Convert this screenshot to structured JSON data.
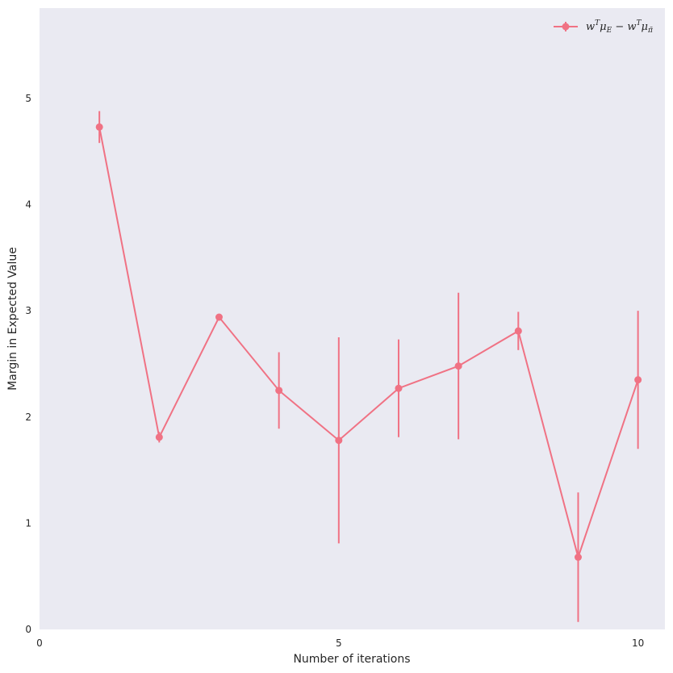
{
  "chart_data": {
    "type": "line",
    "xlabel": "Number of iterations",
    "ylabel": "Margin in Expected Value",
    "xlim": [
      0,
      10.45
    ],
    "ylim": [
      0,
      5.85
    ],
    "xticks": [
      0,
      5,
      10
    ],
    "yticks": [
      0,
      1,
      2,
      3,
      4,
      5
    ],
    "grid": false,
    "legend": "top-right",
    "series": [
      {
        "name": "w^T μ_E − w^T μ_π̃",
        "color": "#f07284",
        "x": [
          1,
          2,
          3,
          4,
          5,
          6,
          7,
          8,
          9,
          10
        ],
        "y": [
          4.73,
          1.81,
          2.94,
          2.25,
          1.78,
          2.27,
          2.48,
          2.81,
          0.68,
          2.35
        ],
        "error": [
          0.15,
          0.05,
          0.02,
          0.36,
          0.97,
          0.46,
          0.69,
          0.18,
          0.61,
          0.65
        ]
      }
    ]
  }
}
